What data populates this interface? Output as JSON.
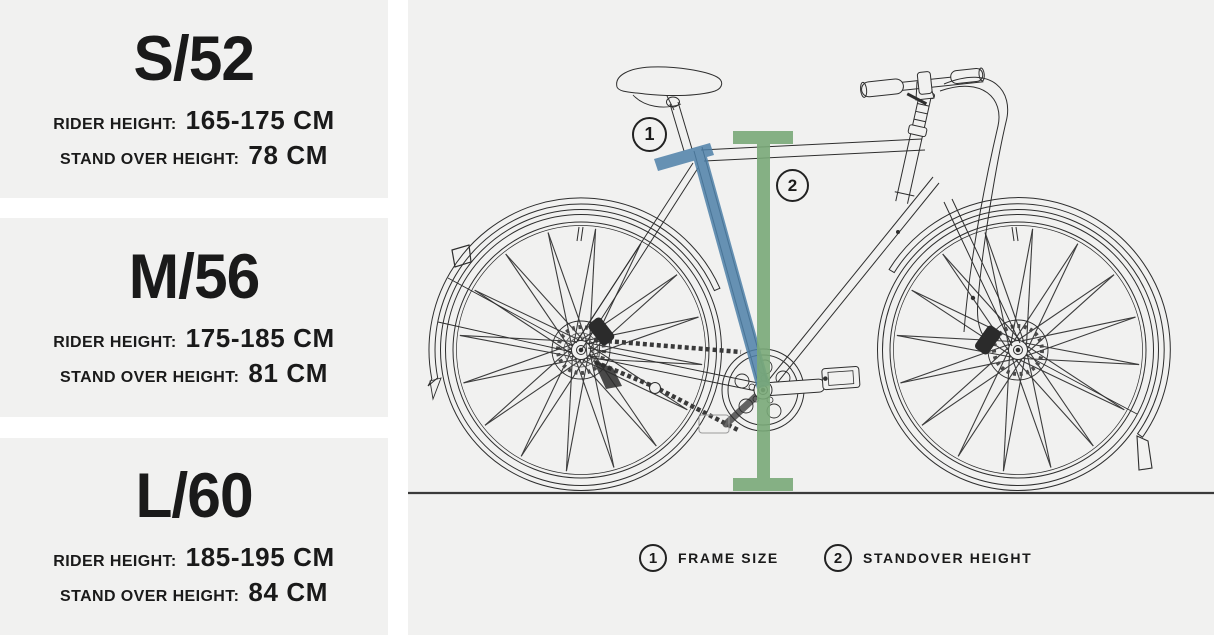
{
  "size_cards": [
    {
      "title": "S/52",
      "rider_label": "RIDER HEIGHT:",
      "rider_value": "165-175 CM",
      "standover_label": "STAND OVER HEIGHT:",
      "standover_value": "78 CM"
    },
    {
      "title": "M/56",
      "rider_label": "RIDER HEIGHT:",
      "rider_value": "175-185 CM",
      "standover_label": "STAND OVER HEIGHT:",
      "standover_value": "81 CM"
    },
    {
      "title": "L/60",
      "rider_label": "RIDER HEIGHT:",
      "rider_value": "185-195 CM",
      "standover_label": "STAND OVER HEIGHT:",
      "standover_value": "84 CM"
    }
  ],
  "diagram": {
    "markers": [
      {
        "number": "1"
      },
      {
        "number": "2"
      }
    ],
    "legend": [
      {
        "number": "1",
        "label": "FRAME SIZE"
      },
      {
        "number": "2",
        "label": "STANDOVER HEIGHT"
      }
    ],
    "colors": {
      "frame_size_highlight": "#4d80a8",
      "standover_highlight": "#79a878"
    }
  }
}
